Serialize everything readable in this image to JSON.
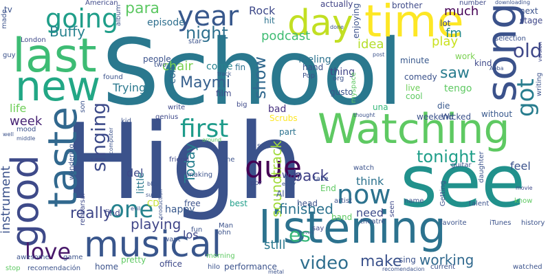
{
  "words": [
    {
      "text": "School",
      "color": "#2a788e"
    },
    {
      "text": "High",
      "color": "#3b528b"
    },
    {
      "text": "see",
      "color": "#21918c"
    },
    {
      "text": "listening",
      "color": "#2c728e"
    },
    {
      "text": "Watching",
      "color": "#5ec962"
    },
    {
      "text": "musical",
      "color": "#39568c"
    },
    {
      "text": "taste",
      "color": "#31688e"
    },
    {
      "text": "last",
      "color": "#3dbc74"
    },
    {
      "text": "new",
      "color": "#22a785"
    },
    {
      "text": "time",
      "color": "#fde725"
    },
    {
      "text": "good",
      "color": "#3e4a89"
    },
    {
      "text": "song",
      "color": "#3b528b"
    },
    {
      "text": "day",
      "color": "#c2df23"
    },
    {
      "text": "year",
      "color": "#38588c"
    },
    {
      "text": "going",
      "color": "#1f9e89"
    },
    {
      "text": "now",
      "color": "#2c728e"
    },
    {
      "text": "first",
      "color": "#1e9b8a"
    },
    {
      "text": "que",
      "color": "#440154"
    },
    {
      "text": "one",
      "color": "#26828e"
    },
    {
      "text": "love",
      "color": "#48186a"
    },
    {
      "text": "got",
      "color": "#287d8e"
    },
    {
      "text": "es",
      "color": "#35b779"
    },
    {
      "text": "video",
      "color": "#2e6e8e"
    },
    {
      "text": "old",
      "color": "#3f4889"
    },
    {
      "text": "singing",
      "color": "#3e4c8a"
    },
    {
      "text": "night",
      "color": "#2e6f8e"
    },
    {
      "text": "para",
      "color": "#5dc863"
    },
    {
      "text": "Buffy",
      "color": "#26828e"
    },
    {
      "text": "podcast",
      "color": "#3fbc73"
    },
    {
      "text": "soundtrack",
      "color": "#a0da39"
    },
    {
      "text": "show",
      "color": "#31688e"
    },
    {
      "text": "tonight",
      "color": "#1f9e89"
    },
    {
      "text": "finished",
      "color": "#2c728e"
    },
    {
      "text": "playing",
      "color": "#404688"
    },
    {
      "text": "working",
      "color": "#30698e"
    },
    {
      "text": "make",
      "color": "#3b528b"
    },
    {
      "text": "back",
      "color": "#414287"
    },
    {
      "text": "really",
      "color": "#3f4788"
    },
    {
      "text": "Maymi",
      "color": "#355f8d"
    },
    {
      "text": "instrument",
      "color": "#3b528b"
    },
    {
      "text": "Today",
      "color": "#277f8e"
    },
    {
      "text": "chair",
      "color": "#7ad151"
    },
    {
      "text": "saw",
      "color": "#287c8e"
    },
    {
      "text": "much",
      "color": "#440154"
    },
    {
      "text": "idea",
      "color": "#b5de2b"
    },
    {
      "text": "play",
      "color": "#cae11f"
    },
    {
      "text": "fm",
      "color": "#238a8d"
    },
    {
      "text": "Rock",
      "color": "#3e4989"
    },
    {
      "text": "episode",
      "color": "#2e6f8e"
    },
    {
      "text": "Trying",
      "color": "#2a788e"
    },
    {
      "text": "week",
      "color": "#482475"
    },
    {
      "text": "life",
      "color": "#6ece58"
    },
    {
      "text": "los",
      "color": "#3f4788"
    },
    {
      "text": "del",
      "color": "#3e4989"
    },
    {
      "text": "still",
      "color": "#2a788e"
    },
    {
      "text": "think",
      "color": "#2c728e"
    },
    {
      "text": "need",
      "color": "#3e4c8a"
    },
    {
      "text": "way",
      "color": "#3e4989"
    },
    {
      "text": "bad",
      "color": "#46307e"
    },
    {
      "text": "feel",
      "color": "#3b528b"
    },
    {
      "text": "little",
      "color": "#2a788e"
    },
    {
      "text": "happy",
      "color": "#38588c"
    },
    {
      "text": "come",
      "color": "#26828e"
    },
    {
      "text": "feeling",
      "color": "#2c728e"
    },
    {
      "text": "actually",
      "color": "#414487"
    },
    {
      "text": "brother",
      "color": "#3e4a89"
    },
    {
      "text": "next",
      "color": "#3b528b"
    },
    {
      "text": "enjoying",
      "color": "#3b528b"
    },
    {
      "text": "stage",
      "color": "#3f4788"
    },
    {
      "text": "kind",
      "color": "#3e4989"
    },
    {
      "text": "lot",
      "color": "#3e4a89"
    },
    {
      "text": "minute",
      "color": "#38588c"
    },
    {
      "text": "Pop",
      "color": "#3b528b"
    },
    {
      "text": "hand",
      "color": "#3b528b"
    },
    {
      "text": "hit",
      "color": "#2c728e"
    },
    {
      "text": "fin",
      "color": "#2c728e"
    },
    {
      "text": "con",
      "color": "#31688e"
    },
    {
      "text": "people",
      "color": "#3b528b"
    },
    {
      "text": "film",
      "color": "#3e4989"
    },
    {
      "text": "Scrubs",
      "color": "#fde725"
    },
    {
      "text": "part",
      "color": "#2c728e"
    },
    {
      "text": "weekend",
      "color": "#3b528b"
    },
    {
      "text": "Wicked",
      "color": "#3b528b"
    },
    {
      "text": "comedy",
      "color": "#3b528b"
    },
    {
      "text": "live",
      "color": "#6ece58"
    },
    {
      "text": "cool",
      "color": "#5ec962"
    },
    {
      "text": "tengo",
      "color": "#5ec962"
    },
    {
      "text": "work",
      "color": "#7ad151"
    },
    {
      "text": "gusto",
      "color": "#3b528b"
    },
    {
      "text": "thing",
      "color": "#414487"
    },
    {
      "text": "org",
      "color": "#3b528b"
    },
    {
      "text": "una",
      "color": "#35b779"
    },
    {
      "text": "die",
      "color": "#38588c"
    },
    {
      "text": "without",
      "color": "#38588c"
    },
    {
      "text": "writing",
      "color": "#3b528b"
    },
    {
      "text": "version",
      "color": "#3e4989"
    },
    {
      "text": "selection",
      "color": "#3b528b"
    },
    {
      "text": "number",
      "color": "#3e4a89"
    },
    {
      "text": "downloading",
      "color": "#3b528b"
    },
    {
      "text": "American",
      "color": "#3e4989"
    },
    {
      "text": "album",
      "color": "#3b528b"
    },
    {
      "text": "star",
      "color": "#3b528b"
    },
    {
      "text": "London",
      "color": "#3e4989"
    },
    {
      "text": "guy",
      "color": "#3b528b"
    },
    {
      "text": "tv",
      "color": "#3b528b"
    },
    {
      "text": "made",
      "color": "#3b528b"
    },
    {
      "text": "two",
      "color": "#3b528b"
    },
    {
      "text": "found",
      "color": "#3b528b"
    },
    {
      "text": "write",
      "color": "#3e4989"
    },
    {
      "text": "kid",
      "color": "#3b528b"
    },
    {
      "text": "genius",
      "color": "#3e4989"
    },
    {
      "text": "big",
      "color": "#3e4989"
    },
    {
      "text": "mood",
      "color": "#3b528b"
    },
    {
      "text": "middle",
      "color": "#3b528b"
    },
    {
      "text": "well",
      "color": "#3b528b"
    },
    {
      "text": "son",
      "color": "#3b528b"
    },
    {
      "text": "friend",
      "color": "#3e4989"
    },
    {
      "text": "tiene",
      "color": "#3b528b"
    },
    {
      "text": "around",
      "color": "#5ec962"
    },
    {
      "text": "su",
      "color": "#3b528b"
    },
    {
      "text": "making",
      "color": "#3b528b"
    },
    {
      "text": "blog",
      "color": "#3b528b"
    },
    {
      "text": "sure",
      "color": "#3b528b"
    },
    {
      "text": "production",
      "color": "#3b528b"
    },
    {
      "text": "por",
      "color": "#3e4989"
    },
    {
      "text": "early",
      "color": "#3b528b"
    },
    {
      "text": "computer",
      "color": "#3b528b"
    },
    {
      "text": "wondering",
      "color": "#3b528b"
    },
    {
      "text": "rehearsal",
      "color": "#3e4989"
    },
    {
      "text": "evil",
      "color": "#3b528b"
    },
    {
      "text": "CD",
      "color": "#c2df23"
    },
    {
      "text": "find",
      "color": "#3e4989"
    },
    {
      "text": "free",
      "color": "#3b528b"
    },
    {
      "text": "best",
      "color": "#1f9e89"
    },
    {
      "text": "head",
      "color": "#3b528b"
    },
    {
      "text": "take",
      "color": "#3b528b"
    },
    {
      "text": "End",
      "color": "#5ec962"
    },
    {
      "text": "Al",
      "color": "#3b528b"
    },
    {
      "text": "band",
      "color": "#5ec962"
    },
    {
      "text": "watch",
      "color": "#3b528b"
    },
    {
      "text": "guitar",
      "color": "#3b528b"
    },
    {
      "text": "daughter",
      "color": "#3b528b"
    },
    {
      "text": "movie",
      "color": "#3e4989"
    },
    {
      "text": "talent",
      "color": "#3b528b"
    },
    {
      "text": "know",
      "color": "#5ec962"
    },
    {
      "text": "history",
      "color": "#3b528b"
    },
    {
      "text": "iTunes",
      "color": "#3b528b"
    },
    {
      "text": "favorite",
      "color": "#3b528b"
    },
    {
      "text": "name",
      "color": "#3b528b"
    },
    {
      "text": "Getting",
      "color": "#3b528b"
    },
    {
      "text": "artist",
      "color": "#3b528b"
    },
    {
      "text": "seen",
      "color": "#3e4989"
    },
    {
      "text": "theatre",
      "color": "#3b528b"
    },
    {
      "text": "say",
      "color": "#3e4989"
    },
    {
      "text": "sing",
      "color": "#3b528b"
    },
    {
      "text": "current",
      "color": "#3b528b"
    },
    {
      "text": "recomendacion",
      "color": "#3b528b"
    },
    {
      "text": "morning",
      "color": "#5ec962"
    },
    {
      "text": "Man",
      "color": "#3b528b"
    },
    {
      "text": "John",
      "color": "#3b528b"
    },
    {
      "text": "fun",
      "color": "#3b528b"
    },
    {
      "text": "want",
      "color": "#3b528b"
    },
    {
      "text": "office",
      "color": "#3e4989"
    },
    {
      "text": "pretty",
      "color": "#5ec962"
    },
    {
      "text": "home",
      "color": "#3b528b"
    },
    {
      "text": "game",
      "color": "#3b528b"
    },
    {
      "text": "awesome",
      "color": "#3b528b"
    },
    {
      "text": "stop",
      "color": "#5ec962"
    },
    {
      "text": "recomendación",
      "color": "#3b528b"
    },
    {
      "text": "performance",
      "color": "#3b528b"
    },
    {
      "text": "hilo",
      "color": "#3b528b"
    },
    {
      "text": "metal",
      "color": "#3b528b"
    },
    {
      "text": "watched",
      "color": "#3b528b"
    },
    {
      "text": "every",
      "color": "#3b528b"
    },
    {
      "text": "post",
      "color": "#3b528b"
    },
    {
      "text": "myspace",
      "color": "#5ec962"
    },
    {
      "text": "Abba",
      "color": "#3b528b"
    },
    {
      "text": "thought",
      "color": "#3b528b"
    },
    {
      "text": "track",
      "color": "#3b528b"
    },
    {
      "text": "done",
      "color": "#3b528b"
    }
  ]
}
